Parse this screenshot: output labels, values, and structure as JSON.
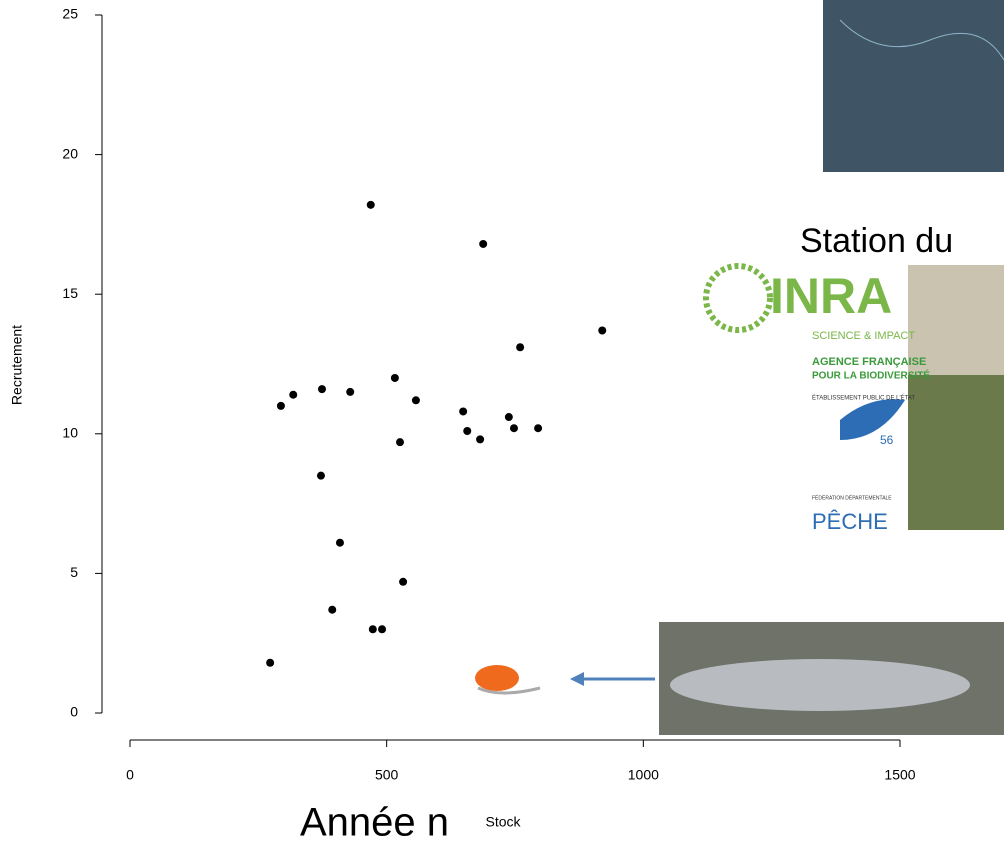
{
  "chart_data": {
    "type": "scatter",
    "x_label": "Stock",
    "y_label": "Recrutement",
    "x": [
      273,
      294,
      318,
      374,
      372,
      429,
      394,
      409,
      473,
      491,
      469,
      516,
      526,
      532,
      557,
      649,
      657,
      682,
      688,
      738,
      748,
      760,
      795,
      920
    ],
    "values": [
      1.8,
      11.0,
      11.4,
      11.6,
      8.5,
      11.5,
      3.7,
      6.1,
      3.0,
      3.0,
      18.2,
      12.0,
      9.7,
      4.7,
      11.2,
      10.8,
      10.1,
      9.8,
      16.8,
      10.6,
      10.2,
      13.1,
      10.2,
      13.7
    ],
    "color": "#000000",
    "xlim": [
      0,
      1500
    ],
    "xticks": [
      0,
      500,
      1000,
      1500
    ],
    "ylim": [
      0,
      25
    ],
    "yticks": [
      0,
      5,
      10,
      15,
      20,
      25
    ],
    "annotations": {
      "year": "Année n",
      "station": "Station du",
      "inra": "INRA",
      "inra_tagline": "SCIENCE & IMPACT",
      "afb_line1": "AGENCE FRANÇAISE",
      "afb_line2": "POUR LA BIODIVERSITÉ",
      "afb_line3": "ÉTABLISSEMENT PUBLIC DE L'ÉTAT",
      "fed_number": "56",
      "fed_line": "FÉDÉRATION DÉPARTEMENTALE",
      "fed_name": "PÊCHE"
    }
  }
}
